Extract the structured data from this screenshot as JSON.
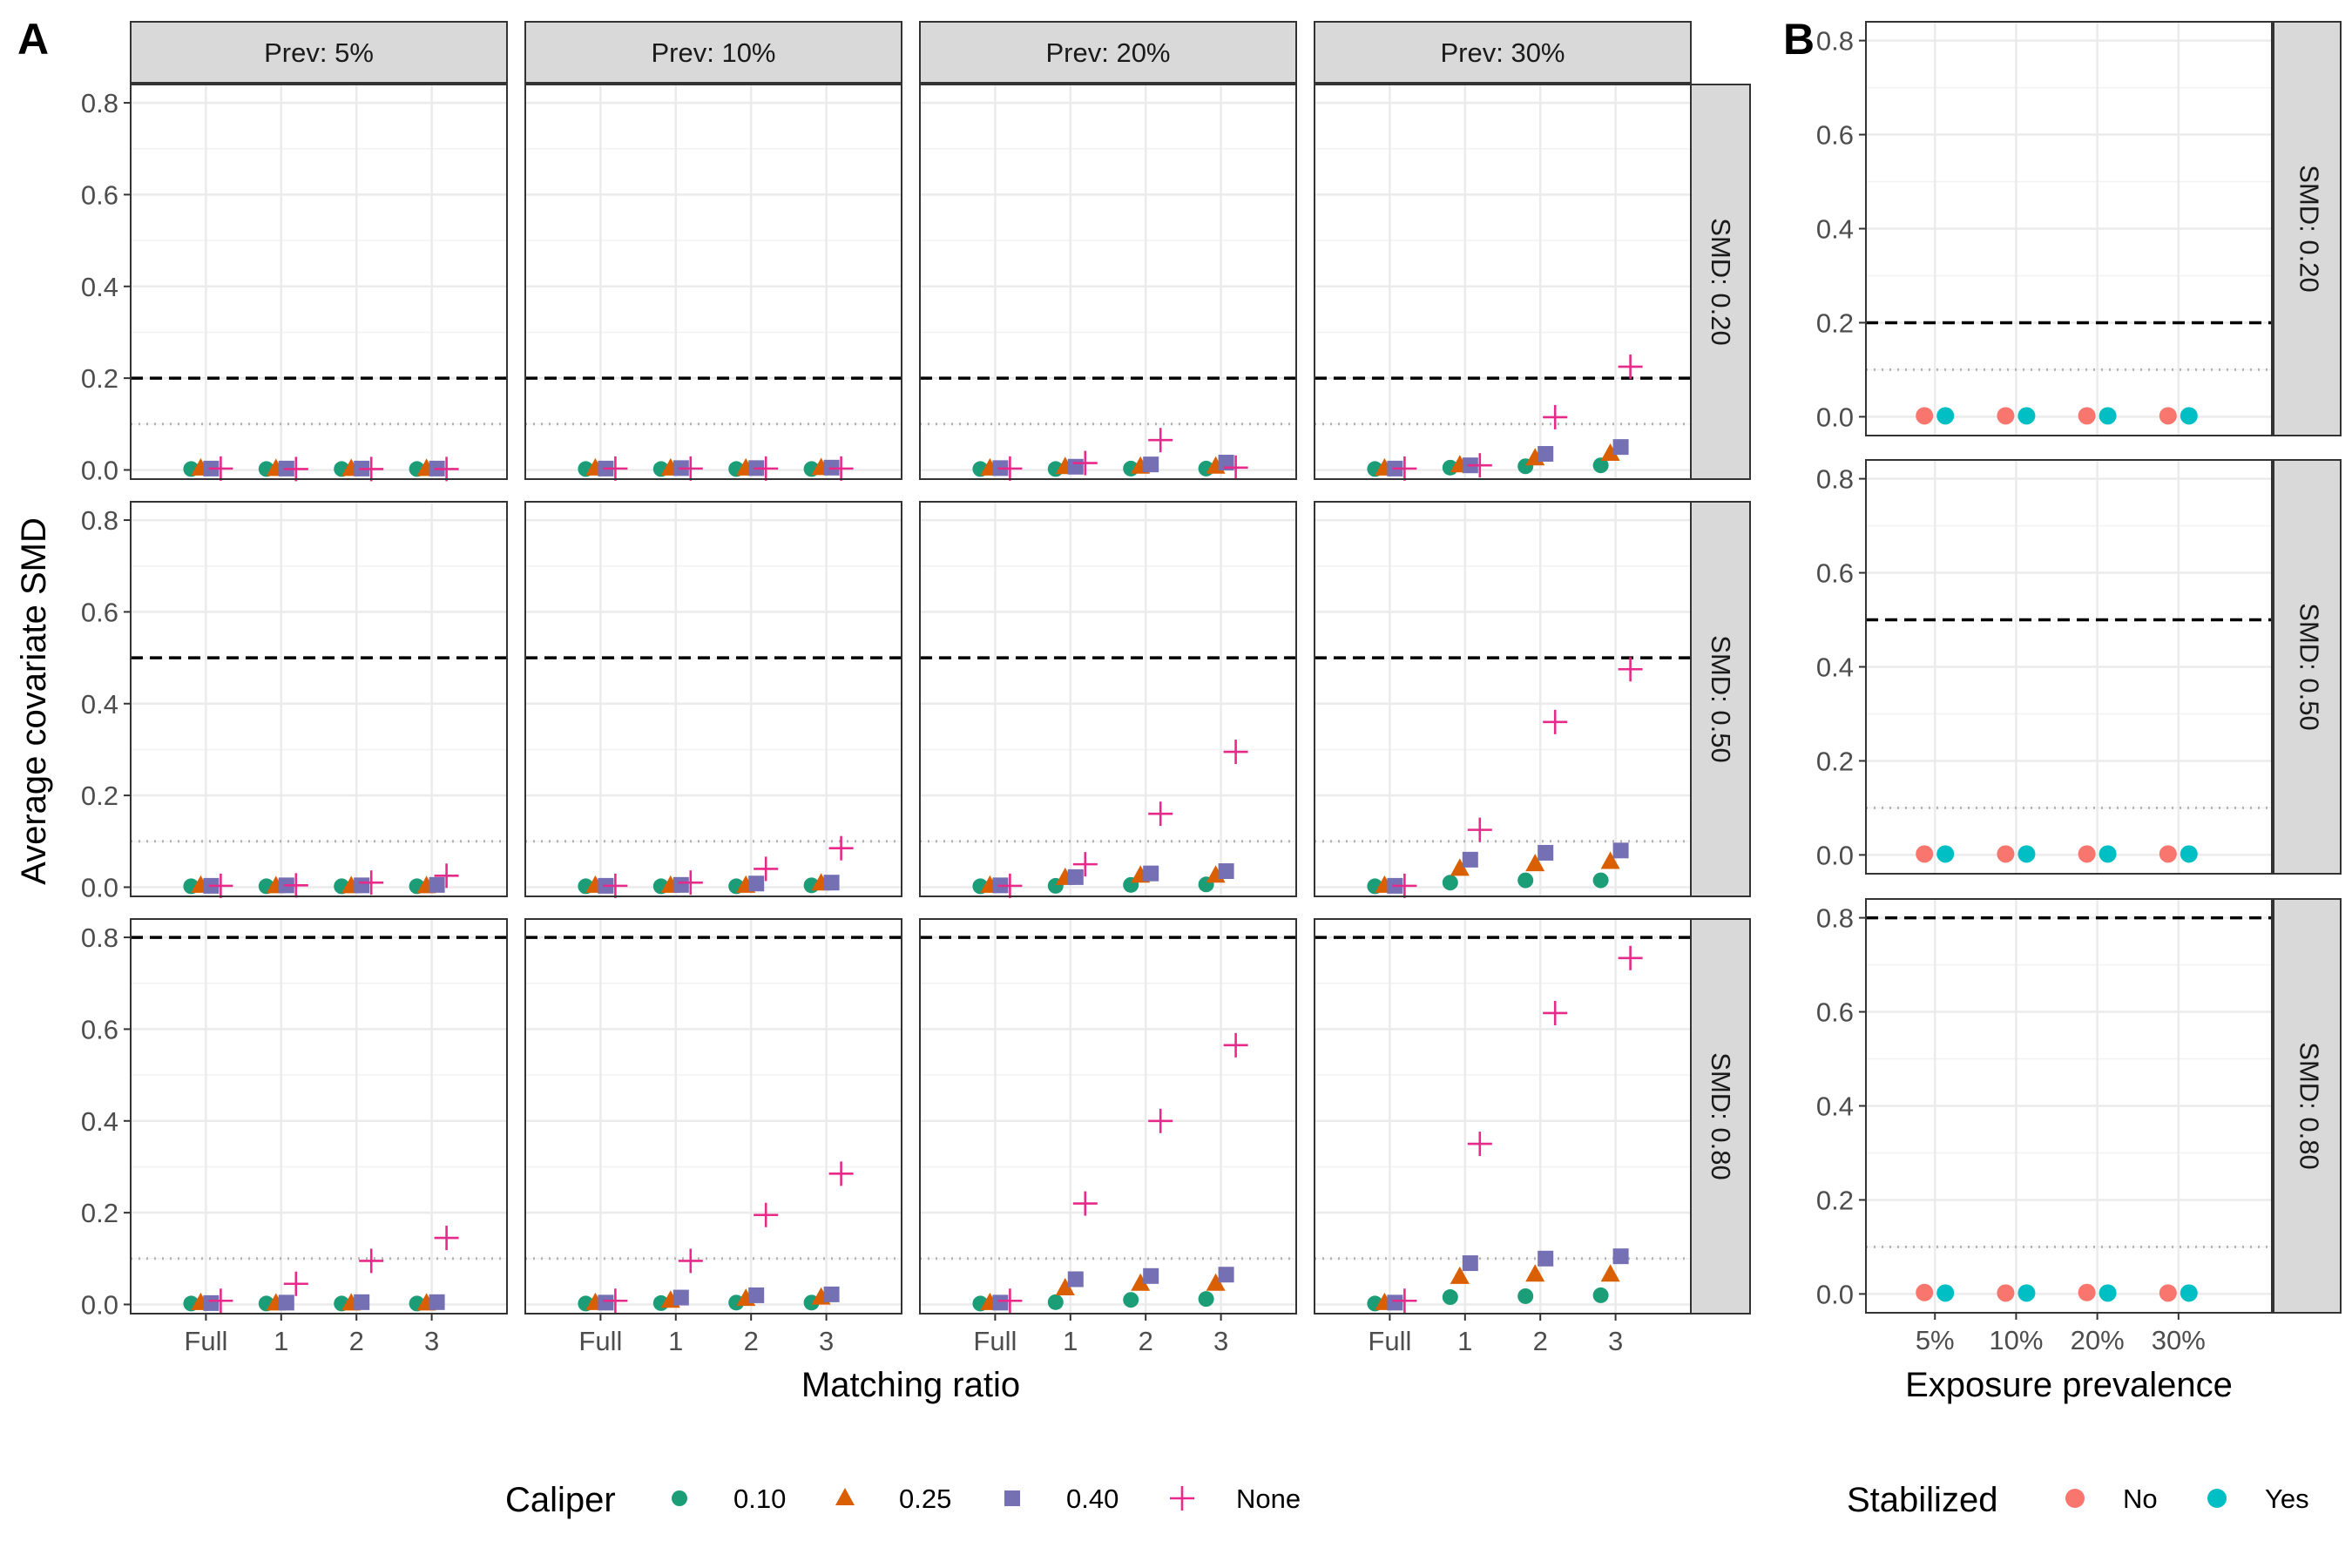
{
  "panel_labels": [
    "A",
    "B"
  ],
  "colors": {
    "cal_0.10": "#1B9E77",
    "cal_0.25": "#D95F02",
    "cal_0.40": "#7570B3",
    "cal_None": "#E7298A",
    "stab_No": "#F8766D",
    "stab_Yes": "#00BFC4",
    "strip": "#D9D9D9",
    "grid": "#EBEBEB"
  },
  "legends": {
    "caliper": {
      "title": "Caliper",
      "items": [
        "0.10",
        "0.25",
        "0.40",
        "None"
      ]
    },
    "stabilized": {
      "title": "Stabilized",
      "items": [
        "No",
        "Yes"
      ]
    }
  },
  "chart_data": [
    {
      "type": "scatter",
      "panel": "A",
      "xlabel": "Matching ratio",
      "ylabel": "Average covariate SMD",
      "categories": [
        "Full",
        "1",
        "2",
        "3"
      ],
      "ylim": [
        -0.02,
        0.84
      ],
      "yticks": [
        "0.0",
        "0.2",
        "0.4",
        "0.6",
        "0.8"
      ],
      "col_facets": [
        "Prev: 5%",
        "Prev: 10%",
        "Prev: 20%",
        "Prev: 30%"
      ],
      "row_facets": [
        "SMD: 0.20",
        "SMD: 0.50",
        "SMD: 0.80"
      ],
      "reference_dotted": 0.1,
      "reference_dashed": [
        0.2,
        0.5,
        0.8
      ],
      "series_names": [
        "0.10",
        "0.25",
        "0.40",
        "None"
      ],
      "values": [
        [
          [
            [
              0.002,
              0.002,
              0.002,
              0.002
            ],
            [
              0.003,
              0.002,
              0.002,
              0.002
            ],
            [
              0.003,
              0.003,
              0.003,
              0.003
            ],
            [
              0.003,
              0.002,
              0.002,
              0.002
            ]
          ],
          [
            [
              0.002,
              0.002,
              0.002,
              0.002
            ],
            [
              0.003,
              0.003,
              0.003,
              0.004
            ],
            [
              0.003,
              0.004,
              0.004,
              0.005
            ],
            [
              0.003,
              0.003,
              0.003,
              0.003
            ]
          ],
          [
            [
              0.002,
              0.002,
              0.003,
              0.003
            ],
            [
              0.003,
              0.006,
              0.007,
              0.007
            ],
            [
              0.004,
              0.007,
              0.012,
              0.016
            ],
            [
              0.003,
              0.015,
              0.065,
              0.005
            ]
          ],
          [
            [
              0.002,
              0.005,
              0.008,
              0.01
            ],
            [
              0.003,
              0.01,
              0.025,
              0.035
            ],
            [
              0.003,
              0.01,
              0.035,
              0.05
            ],
            [
              0.003,
              0.01,
              0.115,
              0.225
            ]
          ]
        ],
        [
          [
            [
              0.002,
              0.002,
              0.002,
              0.002
            ],
            [
              0.003,
              0.002,
              0.002,
              0.002
            ],
            [
              0.003,
              0.004,
              0.004,
              0.005
            ],
            [
              0.003,
              0.004,
              0.01,
              0.025
            ]
          ],
          [
            [
              0.002,
              0.002,
              0.002,
              0.004
            ],
            [
              0.003,
              0.003,
              0.003,
              0.008
            ],
            [
              0.003,
              0.005,
              0.008,
              0.01
            ],
            [
              0.003,
              0.01,
              0.04,
              0.085
            ]
          ],
          [
            [
              0.002,
              0.003,
              0.005,
              0.006
            ],
            [
              0.003,
              0.02,
              0.025,
              0.025
            ],
            [
              0.004,
              0.022,
              0.03,
              0.035
            ],
            [
              0.003,
              0.05,
              0.16,
              0.295
            ]
          ],
          [
            [
              0.002,
              0.01,
              0.015,
              0.015
            ],
            [
              0.003,
              0.04,
              0.05,
              0.055
            ],
            [
              0.003,
              0.06,
              0.075,
              0.08
            ],
            [
              0.003,
              0.125,
              0.36,
              0.475
            ]
          ]
        ],
        [
          [
            [
              0.002,
              0.002,
              0.002,
              0.002
            ],
            [
              0.003,
              0.002,
              0.002,
              0.002
            ],
            [
              0.003,
              0.004,
              0.005,
              0.005
            ],
            [
              0.008,
              0.045,
              0.095,
              0.145
            ]
          ],
          [
            [
              0.002,
              0.003,
              0.004,
              0.004
            ],
            [
              0.003,
              0.008,
              0.012,
              0.015
            ],
            [
              0.004,
              0.015,
              0.02,
              0.022
            ],
            [
              0.008,
              0.095,
              0.195,
              0.285
            ]
          ],
          [
            [
              0.002,
              0.005,
              0.01,
              0.012
            ],
            [
              0.003,
              0.035,
              0.045,
              0.045
            ],
            [
              0.004,
              0.055,
              0.062,
              0.065
            ],
            [
              0.008,
              0.22,
              0.4,
              0.565
            ]
          ],
          [
            [
              0.002,
              0.016,
              0.018,
              0.02
            ],
            [
              0.003,
              0.06,
              0.065,
              0.065
            ],
            [
              0.004,
              0.09,
              0.1,
              0.105
            ],
            [
              0.008,
              0.35,
              0.635,
              0.755
            ]
          ]
        ]
      ]
    },
    {
      "type": "scatter",
      "panel": "B",
      "xlabel": "Exposure prevalence",
      "ylabel": "",
      "categories": [
        "5%",
        "10%",
        "20%",
        "30%"
      ],
      "ylim": [
        -0.04,
        0.84
      ],
      "yticks": [
        "0.0",
        "0.2",
        "0.4",
        "0.6",
        "0.8"
      ],
      "row_facets": [
        "SMD: 0.20",
        "SMD: 0.50",
        "SMD: 0.80"
      ],
      "reference_dotted": 0.1,
      "reference_dashed": [
        0.2,
        0.5,
        0.8
      ],
      "series_names": [
        "No",
        "Yes"
      ],
      "values": [
        [
          [
            0.002,
            0.002,
            0.002,
            0.002
          ],
          [
            0.002,
            0.002,
            0.002,
            0.002
          ]
        ],
        [
          [
            0.002,
            0.002,
            0.002,
            0.002
          ],
          [
            0.002,
            0.002,
            0.002,
            0.002
          ]
        ],
        [
          [
            0.003,
            0.002,
            0.003,
            0.002
          ],
          [
            0.002,
            0.002,
            0.002,
            0.002
          ]
        ]
      ]
    }
  ]
}
